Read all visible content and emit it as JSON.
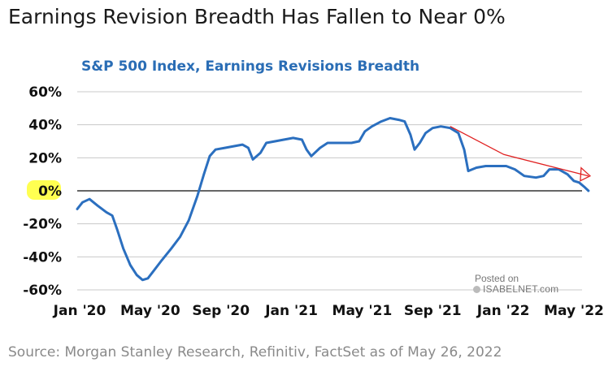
{
  "headline": "Earnings Revision Breadth Has Fallen to Near 0%",
  "source": "Source: Morgan Stanley Research, Refinitiv, FactSet as of May 26, 2022",
  "watermark": {
    "line1": "Posted on",
    "line2": "ISABELNET.com"
  },
  "colors": {
    "line": "#2b6fbf",
    "title": "#2a6db5",
    "trend": "#e02020",
    "highlight": "#ffff33"
  },
  "chart_data": {
    "type": "line",
    "title": "S&P 500 Index, Earnings Revisions Breadth",
    "ylim": [
      -60,
      60
    ],
    "xlim": [
      "2020-01",
      "2022-05"
    ],
    "y_ticks": [
      "60%",
      "40%",
      "20%",
      "0%",
      "-20%",
      "-40%",
      "-60%"
    ],
    "x_ticks": [
      "Jan '20",
      "May '20",
      "Sep '20",
      "Jan '21",
      "May '21",
      "Sep '21",
      "Jan '22",
      "May '22"
    ],
    "grid": "horizontal",
    "highlighted_tick": "0%",
    "series": [
      {
        "points": [
          [
            "2020-01-01",
            -11
          ],
          [
            "2020-01-10",
            -7
          ],
          [
            "2020-01-22",
            -5
          ],
          [
            "2020-02-05",
            -9
          ],
          [
            "2020-02-20",
            -13
          ],
          [
            "2020-03-01",
            -15
          ],
          [
            "2020-03-10",
            -24
          ],
          [
            "2020-03-20",
            -35
          ],
          [
            "2020-04-01",
            -45
          ],
          [
            "2020-04-12",
            -51
          ],
          [
            "2020-04-22",
            -54
          ],
          [
            "2020-05-01",
            -53
          ],
          [
            "2020-05-12",
            -48
          ],
          [
            "2020-05-25",
            -42
          ],
          [
            "2020-06-10",
            -35
          ],
          [
            "2020-06-25",
            -28
          ],
          [
            "2020-07-10",
            -18
          ],
          [
            "2020-07-25",
            -3
          ],
          [
            "2020-08-05",
            10
          ],
          [
            "2020-08-15",
            21
          ],
          [
            "2020-08-25",
            25
          ],
          [
            "2020-09-10",
            26
          ],
          [
            "2020-09-25",
            27
          ],
          [
            "2020-10-10",
            28
          ],
          [
            "2020-10-20",
            26
          ],
          [
            "2020-10-28",
            19
          ],
          [
            "2020-11-10",
            23
          ],
          [
            "2020-11-20",
            29
          ],
          [
            "2020-12-05",
            30
          ],
          [
            "2020-12-20",
            31
          ],
          [
            "2021-01-05",
            32
          ],
          [
            "2021-01-20",
            31
          ],
          [
            "2021-01-28",
            25
          ],
          [
            "2021-02-05",
            21
          ],
          [
            "2021-02-20",
            26
          ],
          [
            "2021-03-05",
            29
          ],
          [
            "2021-03-25",
            29
          ],
          [
            "2021-04-15",
            29
          ],
          [
            "2021-04-28",
            30
          ],
          [
            "2021-05-08",
            36
          ],
          [
            "2021-05-20",
            39
          ],
          [
            "2021-06-05",
            42
          ],
          [
            "2021-06-20",
            44
          ],
          [
            "2021-07-05",
            43
          ],
          [
            "2021-07-15",
            42
          ],
          [
            "2021-07-25",
            34
          ],
          [
            "2021-08-01",
            25
          ],
          [
            "2021-08-10",
            29
          ],
          [
            "2021-08-20",
            35
          ],
          [
            "2021-09-01",
            38
          ],
          [
            "2021-09-15",
            39
          ],
          [
            "2021-10-01",
            38
          ],
          [
            "2021-10-15",
            35
          ],
          [
            "2021-10-25",
            25
          ],
          [
            "2021-11-01",
            12
          ],
          [
            "2021-11-15",
            14
          ],
          [
            "2021-12-01",
            15
          ],
          [
            "2021-12-20",
            15
          ],
          [
            "2022-01-05",
            15
          ],
          [
            "2022-01-20",
            13
          ],
          [
            "2022-02-05",
            9
          ],
          [
            "2022-02-25",
            8
          ],
          [
            "2022-03-10",
            9
          ],
          [
            "2022-03-20",
            13
          ],
          [
            "2022-04-05",
            13
          ],
          [
            "2022-04-20",
            10
          ],
          [
            "2022-05-01",
            6
          ],
          [
            "2022-05-10",
            5
          ],
          [
            "2022-05-20",
            2
          ],
          [
            "2022-05-26",
            0
          ]
        ]
      }
    ],
    "annotations": [
      {
        "type": "trend-arrow",
        "points": [
          [
            "2021-10-01",
            39
          ],
          [
            "2022-01-01",
            22
          ],
          [
            "2022-05-26",
            9
          ]
        ]
      }
    ]
  }
}
